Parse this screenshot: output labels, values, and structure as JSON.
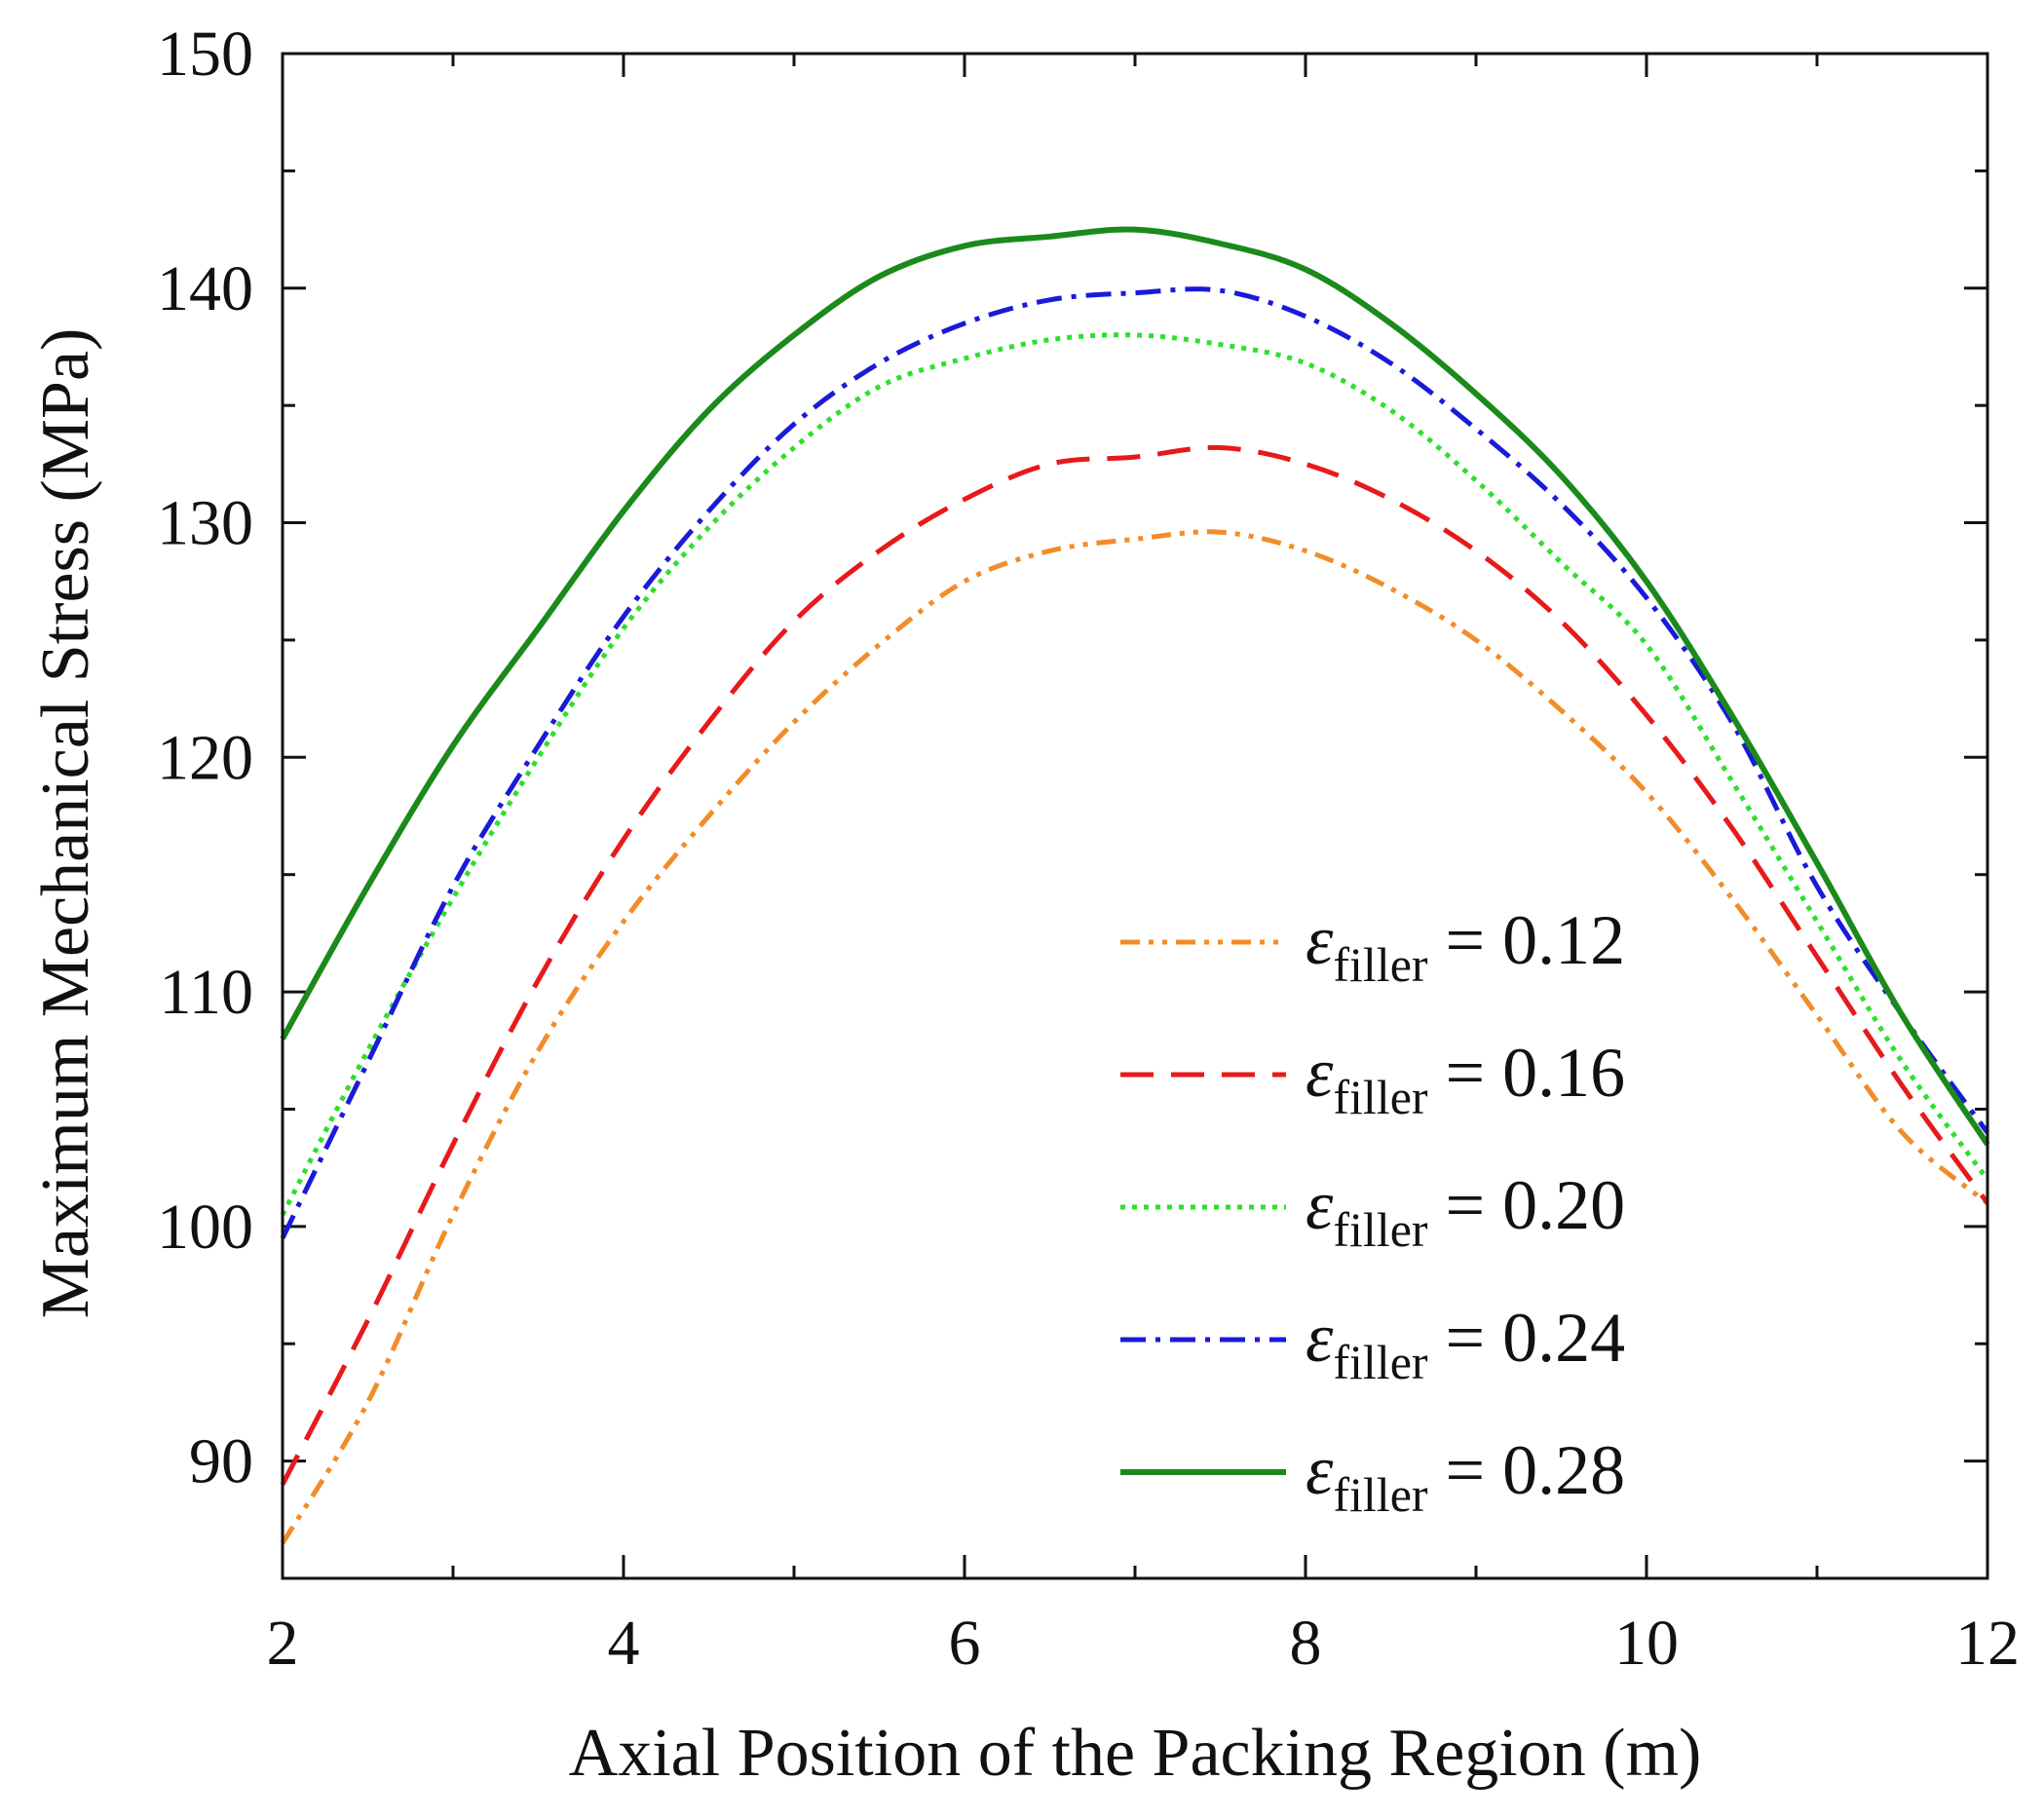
{
  "chart_data": {
    "type": "line",
    "title": "",
    "xlabel": "Axial Position of the Packing Region (m)",
    "ylabel": "Maximum Mechanical Stress (MPa)",
    "xlim": [
      2,
      12
    ],
    "ylim": [
      85,
      150
    ],
    "xticks": [
      2,
      4,
      6,
      8,
      10,
      12
    ],
    "yticks": [
      90,
      100,
      110,
      120,
      130,
      140,
      150
    ],
    "xtick_labels": [
      "2",
      "4",
      "6",
      "8",
      "10",
      "12"
    ],
    "ytick_labels": [
      "90",
      "100",
      "110",
      "120",
      "130",
      "140",
      "150"
    ],
    "grid": false,
    "legend_position": "lower-right",
    "x": [
      2,
      2.5,
      3,
      3.5,
      4,
      4.5,
      5,
      5.5,
      6,
      6.5,
      7,
      7.5,
      8,
      8.5,
      9,
      9.5,
      10,
      10.5,
      11,
      11.5,
      12
    ],
    "series": [
      {
        "name": "0.12",
        "color": "#f28c28",
        "dash": "dashdotdot",
        "values": [
          86.5,
          92.5,
          100.5,
          107.5,
          113,
          117.5,
          121.5,
          124.8,
          127.5,
          128.8,
          129.3,
          129.6,
          128.8,
          127.2,
          125,
          122,
          118.5,
          114,
          109,
          104,
          101
        ]
      },
      {
        "name": "0.16",
        "color": "#e8191b",
        "dash": "dash",
        "values": [
          89,
          96,
          103.5,
          110.5,
          116.5,
          121.5,
          125.8,
          128.8,
          131,
          132.5,
          132.8,
          133.2,
          132.5,
          131,
          128.8,
          125.8,
          121.8,
          117,
          111.5,
          106,
          101
        ]
      },
      {
        "name": "0.20",
        "color": "#2de02d",
        "dash": "dot",
        "values": [
          100.5,
          107.5,
          114,
          120,
          125.5,
          129.8,
          133.2,
          135.8,
          137,
          137.8,
          138,
          137.6,
          136.8,
          134.8,
          131.8,
          128.3,
          124.8,
          119,
          113,
          107,
          102
        ]
      },
      {
        "name": "0.24",
        "color": "#1a1ad9",
        "dash": "dashdot",
        "values": [
          99.5,
          107,
          114.5,
          120.5,
          126,
          130.5,
          134.2,
          136.8,
          138.5,
          139.5,
          139.8,
          139.9,
          138.8,
          136.8,
          134,
          130.8,
          126.8,
          121.5,
          114.5,
          109,
          104
        ]
      },
      {
        "name": "0.28",
        "color": "#1b8a1b",
        "dash": "solid",
        "values": [
          108,
          114.5,
          120.5,
          125.5,
          130.5,
          134.8,
          138,
          140.5,
          141.8,
          142.2,
          142.5,
          141.9,
          140.8,
          138.5,
          135.5,
          132,
          127.5,
          121.8,
          115.5,
          109,
          103.5
        ]
      }
    ],
    "legend": {
      "symbol": "ε",
      "subscript": "filler",
      "equals": "=",
      "entries": [
        "0.12",
        "0.16",
        "0.20",
        "0.24",
        "0.28"
      ]
    }
  }
}
